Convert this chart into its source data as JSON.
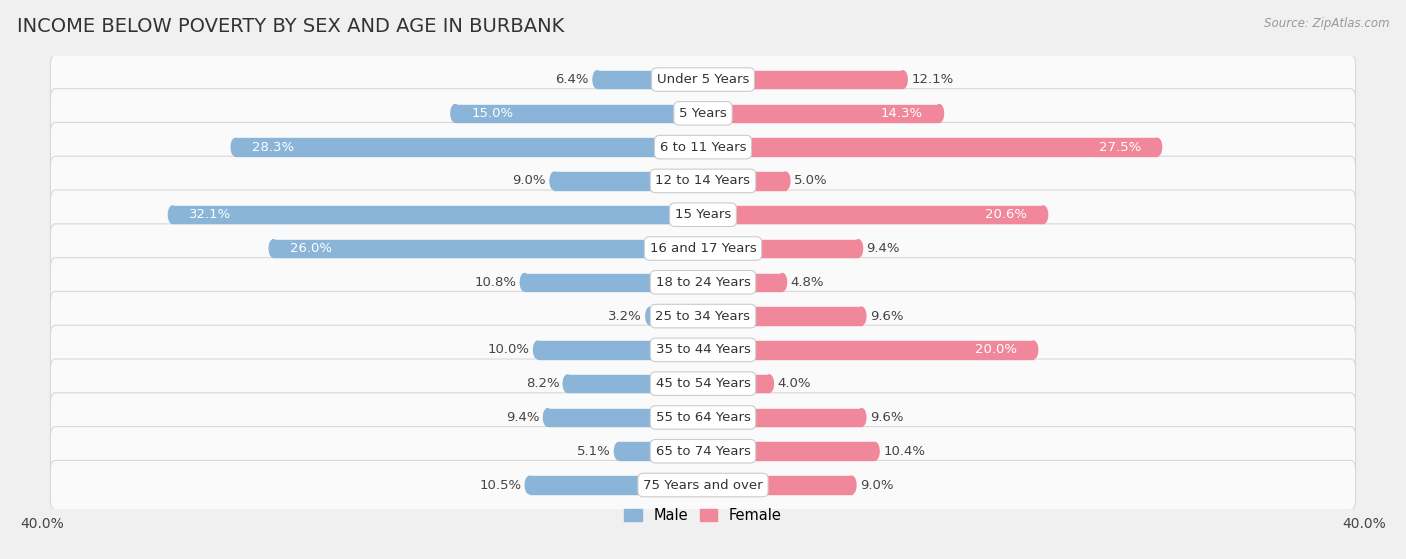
{
  "title": "INCOME BELOW POVERTY BY SEX AND AGE IN BURBANK",
  "source": "Source: ZipAtlas.com",
  "categories": [
    "Under 5 Years",
    "5 Years",
    "6 to 11 Years",
    "12 to 14 Years",
    "15 Years",
    "16 and 17 Years",
    "18 to 24 Years",
    "25 to 34 Years",
    "35 to 44 Years",
    "45 to 54 Years",
    "55 to 64 Years",
    "65 to 74 Years",
    "75 Years and over"
  ],
  "male": [
    6.4,
    15.0,
    28.3,
    9.0,
    32.1,
    26.0,
    10.8,
    3.2,
    10.0,
    8.2,
    9.4,
    5.1,
    10.5
  ],
  "female": [
    12.1,
    14.3,
    27.5,
    5.0,
    20.6,
    9.4,
    4.8,
    9.6,
    20.0,
    4.0,
    9.6,
    10.4,
    9.0
  ],
  "male_color": "#8ab4d8",
  "female_color": "#f0879a",
  "background_color": "#f0f0f0",
  "row_bg_color": "#fafafa",
  "row_border_color": "#d8d8d8",
  "xlim": 40.0,
  "bar_height": 0.52,
  "legend_male": "Male",
  "legend_female": "Female",
  "title_fontsize": 14,
  "label_fontsize": 9.5,
  "axis_fontsize": 10,
  "category_fontsize": 9.5,
  "inside_label_threshold": 13.0
}
